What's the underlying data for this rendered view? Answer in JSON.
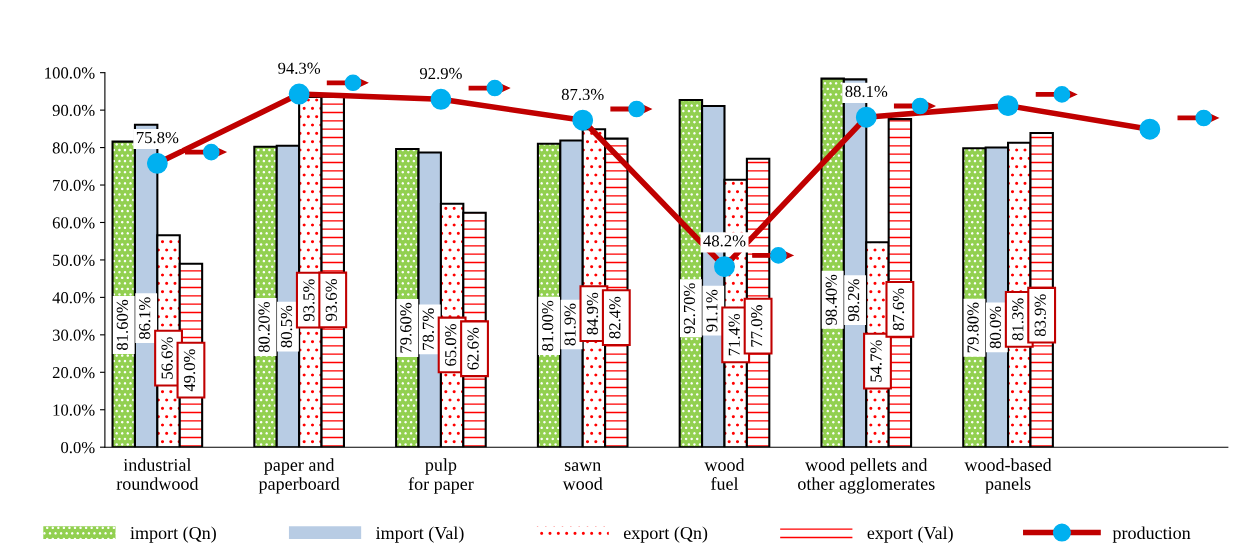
{
  "chart_data": {
    "type": "bar",
    "categories": [
      "industrial\nroundwood",
      "paper and\npaperboard",
      "pulp\nfor paper",
      "sawn\nwood",
      "wood\nfuel",
      "wood pellets and\nother agglomerates",
      "wood-based\npanels",
      null
    ],
    "series": [
      {
        "name": "import (Qn)",
        "color": "#92d050",
        "values": [
          81.6,
          80.2,
          79.6,
          81.0,
          92.7,
          98.4,
          79.8,
          null
        ],
        "value_labels": [
          "81.60%",
          "80.20%",
          "79.60%",
          "81.00%",
          "92.70%",
          "98.40%",
          "79.80%",
          null
        ]
      },
      {
        "name": "import (Val)",
        "color": "#b8cce4",
        "values": [
          86.1,
          80.5,
          78.7,
          81.9,
          91.1,
          98.2,
          80.0,
          null
        ],
        "value_labels": [
          "86.1%",
          "80.5%",
          "78.7%",
          "81.9%",
          "91.1%",
          "98.2%",
          "80.0%",
          null
        ]
      },
      {
        "name": "export (Qn)",
        "color": "#ff0000",
        "values": [
          56.6,
          93.5,
          65.0,
          84.9,
          71.4,
          54.7,
          81.3,
          null
        ],
        "value_labels": [
          "56.6%",
          "93.5%",
          "65.0%",
          "84.9%",
          "71.4%",
          "54.7%",
          "81.3%",
          null
        ]
      },
      {
        "name": "export (Val)",
        "color": "#ff0000",
        "values": [
          49.0,
          93.6,
          62.6,
          82.4,
          77.0,
          87.6,
          83.9,
          null
        ],
        "value_labels": [
          "49.0%",
          "93.6%",
          "62.6%",
          "82.4%",
          "77.0%",
          "87.6%",
          "83.9%",
          null
        ]
      },
      {
        "name": "production",
        "type": "line",
        "color": "#c00000",
        "marker": "circle",
        "values": [
          75.8,
          94.3,
          92.9,
          87.3,
          48.2,
          88.1,
          91.2,
          84.9
        ],
        "value_labels": [
          "75.8%",
          "94.3%",
          "92.9%",
          "87.3%",
          "48.2%",
          "88.1%",
          null,
          null
        ]
      }
    ],
    "ylim": [
      0,
      100
    ],
    "yticks": [
      {
        "value": 0,
        "label": "0.0%"
      },
      {
        "value": 10,
        "label": "10.0%"
      },
      {
        "value": 20,
        "label": "20.0%"
      },
      {
        "value": 30,
        "label": "30.0%"
      },
      {
        "value": 40,
        "label": "40.0%"
      },
      {
        "value": 50,
        "label": "50.0%"
      },
      {
        "value": 60,
        "label": "60.0%"
      },
      {
        "value": 70,
        "label": "70.0%"
      },
      {
        "value": 80,
        "label": "80.0%"
      },
      {
        "value": 90,
        "label": "90.0%"
      },
      {
        "value": 100,
        "label": "100.0%"
      }
    ],
    "grid": false,
    "legend": "bottom"
  }
}
